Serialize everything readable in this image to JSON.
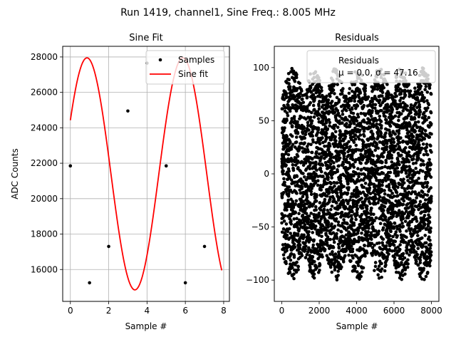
{
  "figure": {
    "suptitle": "Run 1419, channel1, Sine Freq.: 8.005 MHz"
  },
  "chart_data": [
    {
      "type": "scatter",
      "title": "Sine Fit",
      "xlabel": "Sample #",
      "ylabel": "ADC Counts",
      "xlim": [
        -0.4,
        8.3
      ],
      "ylim": [
        14200,
        28600
      ],
      "xticks": [
        0,
        2,
        4,
        6,
        8
      ],
      "yticks": [
        16000,
        18000,
        20000,
        22000,
        24000,
        26000,
        28000
      ],
      "grid": true,
      "legend_position": "upper-right",
      "series": [
        {
          "name": "Samples",
          "kind": "points",
          "color": "#000000",
          "x": [
            0,
            1,
            2,
            3,
            4,
            5,
            6,
            7
          ],
          "y": [
            21850,
            15250,
            17300,
            24950,
            27650,
            21850,
            15250,
            17300
          ]
        },
        {
          "name": "Sine fit",
          "kind": "line",
          "color": "#ff0000",
          "x_range": [
            0,
            7.9
          ],
          "model": {
            "offset": 21400,
            "amplitude": 6550,
            "period": 5.0,
            "phase": 0.48
          }
        }
      ]
    },
    {
      "type": "scatter",
      "title": "Residuals",
      "xlabel": "Sample #",
      "ylabel": "",
      "xlim": [
        -400,
        8400
      ],
      "ylim": [
        -120,
        120
      ],
      "xticks": [
        0,
        2000,
        4000,
        6000,
        8000
      ],
      "yticks": [
        -100,
        -50,
        0,
        50,
        100
      ],
      "grid": false,
      "legend_position": "upper-right",
      "series": [
        {
          "name": "Residuals",
          "kind": "points",
          "color": "#000000",
          "n_points": 8000,
          "x_range": [
            0,
            8000
          ],
          "y_range": [
            -100,
            100
          ]
        }
      ],
      "legend_stats": "μ = 0.0, σ = 47.16"
    }
  ]
}
